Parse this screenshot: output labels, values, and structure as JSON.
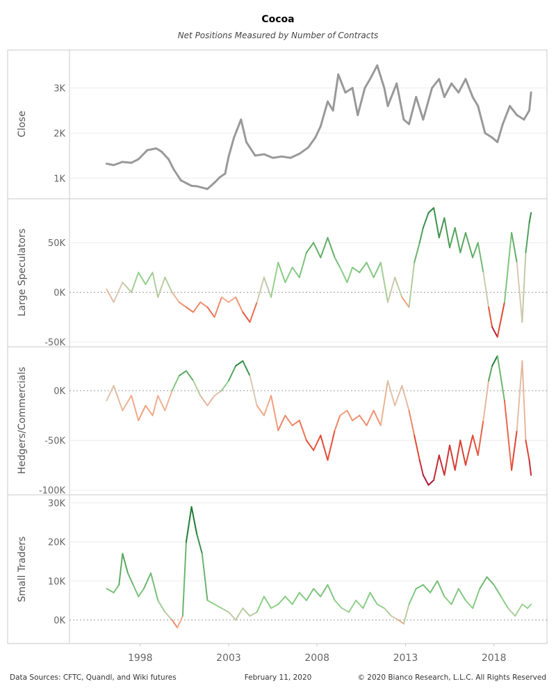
{
  "title": "Cocoa",
  "subtitle": "Net Positions Measured by Number of Contracts",
  "footer": {
    "sources": "Data Sources: CFTC, Quandl, and Wiki futures",
    "date": "February 11, 2020",
    "copyright": "© 2020 Bianco Research, L.L.C. All Rights Reserved"
  },
  "colors": {
    "close_line": "#999999",
    "dark_green": "#1e7a35",
    "light_green": "#8fd18a",
    "neutral": "#d9c7b4",
    "salmon": "#f4a582",
    "red": "#e34a33",
    "dark_red": "#a50f3a",
    "frame": "#c8c8c8",
    "tick_text": "#666666"
  },
  "chart_data": {
    "type": "line",
    "x_axis": {
      "ticks": [
        1998,
        2003,
        2008,
        2013,
        2018
      ],
      "tick_labels": [
        "1998",
        "2003",
        "2008",
        "2013",
        "2018"
      ],
      "xlim": [
        1994.0,
        2021.0
      ]
    },
    "panels": [
      {
        "name": "Close",
        "ylabel": "Close",
        "ylim": [
          650,
          3750
        ],
        "ticks": [
          1000,
          2000,
          3000
        ],
        "tick_labels": [
          "1K",
          "2K",
          "3K"
        ],
        "zero_line": false,
        "color_mode": "gray",
        "color_scale": [
          0,
          1
        ],
        "x": [
          1996.1,
          1996.5,
          1997.0,
          1997.5,
          1997.9,
          1998.4,
          1998.9,
          1999.2,
          1999.6,
          1999.9,
          2000.3,
          2000.7,
          2000.9,
          2001.2,
          2001.5,
          2001.8,
          2002.2,
          2002.5,
          2002.8,
          2003.0,
          2003.3,
          2003.7,
          2004.0,
          2004.5,
          2005.0,
          2005.5,
          2006.0,
          2006.5,
          2007.0,
          2007.5,
          2007.9,
          2008.2,
          2008.6,
          2008.9,
          2009.2,
          2009.6,
          2010.0,
          2010.3,
          2010.7,
          2011.0,
          2011.4,
          2011.8,
          2012.0,
          2012.5,
          2012.9,
          2013.2,
          2013.6,
          2014.0,
          2014.5,
          2014.9,
          2015.2,
          2015.6,
          2016.0,
          2016.4,
          2016.8,
          2017.1,
          2017.5,
          2017.9,
          2018.2,
          2018.5,
          2018.9,
          2019.3,
          2019.7,
          2020.0,
          2020.1
        ],
        "y": [
          1320,
          1290,
          1360,
          1340,
          1420,
          1620,
          1660,
          1590,
          1420,
          1190,
          950,
          870,
          830,
          820,
          790,
          760,
          900,
          1020,
          1100,
          1480,
          1900,
          2300,
          1800,
          1500,
          1530,
          1450,
          1480,
          1450,
          1540,
          1680,
          1900,
          2150,
          2700,
          2500,
          3300,
          2900,
          3000,
          2400,
          3000,
          3200,
          3500,
          3000,
          2600,
          3100,
          2300,
          2200,
          2800,
          2300,
          3000,
          3200,
          2800,
          3100,
          2900,
          3200,
          2800,
          2600,
          2000,
          1900,
          1800,
          2200,
          2600,
          2400,
          2300,
          2500,
          2900
        ],
        "y_top": 72,
        "y_bottom": 285
      },
      {
        "name": "Large Speculators",
        "ylabel": "Large Speculators",
        "ylim": [
          -50000,
          90000
        ],
        "ticks": [
          -50000,
          0,
          50000
        ],
        "tick_labels": [
          "-50K",
          "0K",
          "50K"
        ],
        "zero_line": true,
        "color_mode": "diverging",
        "color_scale": [
          -45000,
          90000
        ],
        "x": [
          1996.1,
          1996.5,
          1997.0,
          1997.5,
          1997.9,
          1998.3,
          1998.7,
          1999.0,
          1999.4,
          1999.8,
          2000.2,
          2000.6,
          2001.0,
          2001.4,
          2001.8,
          2002.2,
          2002.6,
          2003.0,
          2003.4,
          2003.8,
          2004.2,
          2004.6,
          2005.0,
          2005.4,
          2005.8,
          2006.2,
          2006.6,
          2007.0,
          2007.4,
          2007.8,
          2008.2,
          2008.6,
          2009.0,
          2009.3,
          2009.7,
          2010.0,
          2010.4,
          2010.8,
          2011.2,
          2011.6,
          2012.0,
          2012.4,
          2012.8,
          2013.2,
          2013.5,
          2013.8,
          2014.0,
          2014.3,
          2014.6,
          2014.9,
          2015.2,
          2015.5,
          2015.8,
          2016.1,
          2016.4,
          2016.8,
          2017.1,
          2017.4,
          2017.7,
          2017.9,
          2018.2,
          2018.6,
          2019.0,
          2019.3,
          2019.6,
          2019.8,
          2020.0,
          2020.1
        ],
        "y": [
          3000,
          -10000,
          10000,
          0,
          20000,
          8000,
          20000,
          -5000,
          15000,
          0,
          -10000,
          -15000,
          -20000,
          -10000,
          -15000,
          -25000,
          -5000,
          -10000,
          -5000,
          -20000,
          -30000,
          -10000,
          15000,
          -5000,
          30000,
          10000,
          25000,
          15000,
          40000,
          50000,
          35000,
          55000,
          35000,
          25000,
          10000,
          25000,
          20000,
          30000,
          15000,
          30000,
          -10000,
          15000,
          -5000,
          -15000,
          30000,
          50000,
          65000,
          80000,
          85000,
          55000,
          75000,
          45000,
          65000,
          40000,
          60000,
          35000,
          50000,
          20000,
          -15000,
          -35000,
          -45000,
          -10000,
          60000,
          30000,
          -30000,
          40000,
          70000,
          80000
        ],
        "y_top": 286,
        "y_bottom": 498
      },
      {
        "name": "Hedgers/Commercials",
        "ylabel": "Hedgers/Commercials",
        "ylim": [
          -100000,
          40000
        ],
        "ticks": [
          -100000,
          -50000,
          0
        ],
        "tick_labels": [
          "-100K",
          "-50K",
          "0K"
        ],
        "zero_line": true,
        "color_mode": "diverging",
        "color_scale": [
          -95000,
          30000
        ],
        "x": [
          1996.1,
          1996.5,
          1997.0,
          1997.5,
          1997.9,
          1998.3,
          1998.7,
          1999.0,
          1999.4,
          1999.8,
          2000.2,
          2000.6,
          2001.0,
          2001.4,
          2001.8,
          2002.2,
          2002.6,
          2003.0,
          2003.4,
          2003.8,
          2004.2,
          2004.6,
          2005.0,
          2005.4,
          2005.8,
          2006.2,
          2006.6,
          2007.0,
          2007.4,
          2007.8,
          2008.2,
          2008.6,
          2009.0,
          2009.3,
          2009.7,
          2010.0,
          2010.4,
          2010.8,
          2011.2,
          2011.6,
          2012.0,
          2012.4,
          2012.8,
          2013.2,
          2013.5,
          2013.8,
          2014.0,
          2014.3,
          2014.6,
          2014.9,
          2015.2,
          2015.5,
          2015.8,
          2016.1,
          2016.4,
          2016.8,
          2017.1,
          2017.4,
          2017.7,
          2017.9,
          2018.2,
          2018.6,
          2019.0,
          2019.3,
          2019.6,
          2019.8,
          2020.0,
          2020.1
        ],
        "y": [
          -10000,
          5000,
          -20000,
          -5000,
          -30000,
          -15000,
          -25000,
          -5000,
          -20000,
          0,
          15000,
          20000,
          10000,
          -5000,
          -15000,
          -5000,
          0,
          10000,
          25000,
          30000,
          15000,
          -15000,
          -25000,
          -5000,
          -40000,
          -25000,
          -35000,
          -30000,
          -50000,
          -60000,
          -45000,
          -70000,
          -40000,
          -25000,
          -20000,
          -30000,
          -25000,
          -35000,
          -20000,
          -35000,
          10000,
          -15000,
          5000,
          -20000,
          -45000,
          -70000,
          -85000,
          -95000,
          -90000,
          -65000,
          -85000,
          -55000,
          -80000,
          -50000,
          -75000,
          -45000,
          -65000,
          -30000,
          10000,
          25000,
          35000,
          -10000,
          -80000,
          -40000,
          30000,
          -50000,
          -70000,
          -85000
        ],
        "y_top": 499,
        "y_bottom": 711
      },
      {
        "name": "Small Traders",
        "ylabel": "Small Traders",
        "ylim": [
          -5000,
          31000
        ],
        "ticks": [
          0,
          10000,
          20000,
          30000
        ],
        "tick_labels": [
          "0K",
          "10K",
          "20K",
          "30K"
        ],
        "zero_line": true,
        "color_mode": "diverging",
        "color_scale": [
          -3000,
          25000
        ],
        "x": [
          1996.1,
          1996.5,
          1996.8,
          1997.0,
          1997.3,
          1997.6,
          1997.9,
          1998.2,
          1998.6,
          1999.0,
          1999.4,
          1999.8,
          2000.1,
          2000.4,
          2000.6,
          2000.9,
          2001.2,
          2001.5,
          2001.8,
          2002.2,
          2002.6,
          2003.0,
          2003.4,
          2003.8,
          2004.2,
          2004.6,
          2005.0,
          2005.4,
          2005.8,
          2006.2,
          2006.6,
          2007.0,
          2007.4,
          2007.8,
          2008.2,
          2008.6,
          2009.0,
          2009.4,
          2009.8,
          2010.2,
          2010.6,
          2011.0,
          2011.4,
          2011.8,
          2012.2,
          2012.6,
          2012.9,
          2013.2,
          2013.6,
          2014.0,
          2014.4,
          2014.8,
          2015.2,
          2015.6,
          2016.0,
          2016.4,
          2016.8,
          2017.2,
          2017.6,
          2018.0,
          2018.4,
          2018.8,
          2019.2,
          2019.6,
          2019.9,
          2020.1
        ],
        "y": [
          8000,
          7000,
          9000,
          17000,
          12000,
          9000,
          6000,
          8000,
          12000,
          5000,
          2000,
          0,
          -2000,
          1000,
          20000,
          29000,
          22000,
          17000,
          5000,
          4000,
          3000,
          2000,
          0,
          3000,
          1000,
          2000,
          6000,
          3000,
          4000,
          6000,
          4000,
          7000,
          5000,
          8000,
          6000,
          9000,
          5000,
          3000,
          2000,
          5000,
          3000,
          7000,
          4000,
          3000,
          1000,
          0,
          -1000,
          4000,
          8000,
          9000,
          7000,
          10000,
          6000,
          4000,
          8000,
          5000,
          3000,
          8000,
          11000,
          9000,
          6000,
          3000,
          1000,
          4000,
          3000,
          4000
        ],
        "y_top": 712,
        "y_bottom": 926
      }
    ]
  }
}
